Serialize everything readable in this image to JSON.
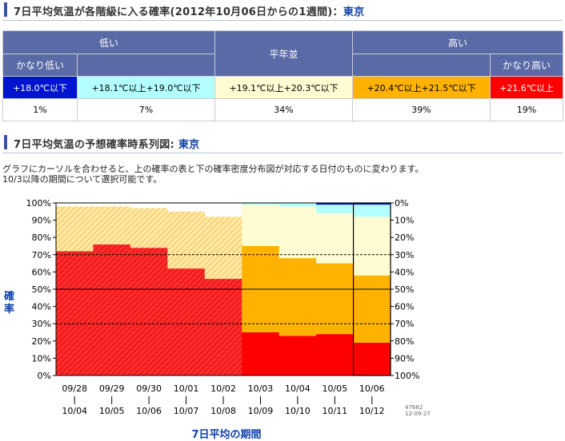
{
  "table_section": {
    "title_prefix": "7日平均気温が各階級に入る確率(2012年10月06日からの1週間)：",
    "place": "東京",
    "groups": {
      "low": "低い",
      "normal": "平年並",
      "high": "高い"
    },
    "subgroups": {
      "very_low": "かなり低い",
      "very_high": "かなり高い"
    },
    "ranges": {
      "very_low": "+18.0℃以下",
      "low": "+18.1℃以上+19.0℃以下",
      "normal": "+19.1℃以上+20.3℃以下",
      "high": "+20.4℃以上+21.5℃以下",
      "very_high": "+21.6℃以上"
    },
    "probabilities": {
      "very_low": "1%",
      "low": "7%",
      "normal": "34%",
      "high": "39%",
      "very_high": "19%"
    }
  },
  "chart_section": {
    "title_prefix": "7日平均気温の予想確率時系列図: ",
    "place": "東京",
    "description_line1": "グラフにカーソルを合わせると、上の確率の表と下の確率密度分布図が対応する日付のものに変わります。",
    "description_line2": "10/3以降の期間について選択可能です。",
    "y_axis_label": "確率",
    "x_axis_label": "7日平均の期間",
    "stamp_line1": "47662",
    "stamp_line2": "12-09-27"
  },
  "colors": {
    "very_low": "#0014d0",
    "low": "#b4ffff",
    "normal": "#fffbd2",
    "high": "#ffb300",
    "very_high": "#ff0000",
    "header": "#5a6aa6",
    "title_text": "#0b3fa8"
  },
  "chart_data": {
    "type": "area",
    "left_ticks": [
      "100%",
      "90%",
      "80%",
      "70%",
      "60%",
      "50%",
      "40%",
      "30%",
      "20%",
      "10%",
      "0%"
    ],
    "right_ticks": [
      "0%",
      "10%",
      "20%",
      "30%",
      "40%",
      "50%",
      "60%",
      "70%",
      "80%",
      "90%",
      "100%"
    ],
    "periods": [
      {
        "start": "09/28",
        "end": "10/04",
        "very_high": 72,
        "high": 0,
        "normal": 26,
        "low": 0,
        "very_low": 0,
        "selectable": false
      },
      {
        "start": "09/29",
        "end": "10/05",
        "very_high": 76,
        "high": 0,
        "normal": 22,
        "low": 0,
        "very_low": 0,
        "selectable": false
      },
      {
        "start": "09/30",
        "end": "10/06",
        "very_high": 74,
        "high": 0,
        "normal": 23,
        "low": 0,
        "very_low": 0,
        "selectable": false
      },
      {
        "start": "10/01",
        "end": "10/07",
        "very_high": 62,
        "high": 0,
        "normal": 33,
        "low": 0,
        "very_low": 0,
        "selectable": false
      },
      {
        "start": "10/02",
        "end": "10/08",
        "very_high": 56,
        "high": 0,
        "normal": 36,
        "low": 0,
        "very_low": 0,
        "selectable": false
      },
      {
        "start": "10/03",
        "end": "10/09",
        "very_high": 25,
        "high": 50,
        "normal": 24,
        "low": 1,
        "very_low": 0,
        "selectable": true
      },
      {
        "start": "10/04",
        "end": "10/10",
        "very_high": 23,
        "high": 45,
        "normal": 30,
        "low": 2,
        "very_low": 0,
        "selectable": true
      },
      {
        "start": "10/05",
        "end": "10/11",
        "very_high": 24,
        "high": 41,
        "normal": 29,
        "low": 5,
        "very_low": 1,
        "selectable": true
      },
      {
        "start": "10/06",
        "end": "10/12",
        "very_high": 19,
        "high": 39,
        "normal": 34,
        "low": 7,
        "very_low": 1,
        "selectable": true
      }
    ],
    "reference_lines": [
      30,
      50,
      70
    ],
    "selected_period": "10/06"
  }
}
